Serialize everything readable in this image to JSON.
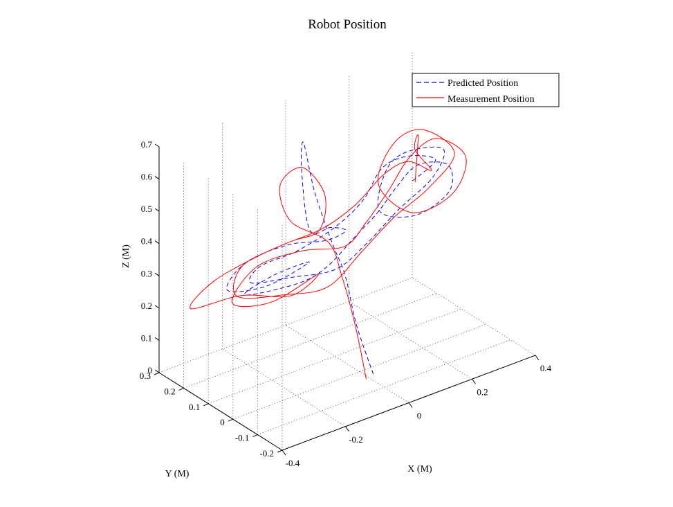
{
  "chart_data": {
    "type": "line",
    "projection": "3d",
    "title": "Robot Position",
    "xlabel": "X (M)",
    "ylabel": "Y (M)",
    "zlabel": "Z (M)",
    "xlim": [
      -0.4,
      0.4
    ],
    "ylim": [
      -0.2,
      0.3
    ],
    "zlim": [
      0,
      0.7
    ],
    "xticks": [
      "-0.4",
      "-0.2",
      "0",
      "0.2",
      "0.4"
    ],
    "yticks": [
      "-0.2",
      "-0.1",
      "0",
      "0.1",
      "0.2",
      "0.3"
    ],
    "zticks": [
      "0",
      "0.1",
      "0.2",
      "0.3",
      "0.4",
      "0.5",
      "0.6",
      "0.7"
    ],
    "grid": true,
    "legend_position": "top-right",
    "series": [
      {
        "name": "Predicted Position",
        "color": "#0000ff",
        "style": "dashed",
        "points": [
          [
            0.02,
            -0.03,
            0.0
          ],
          [
            -0.01,
            0.0,
            0.15
          ],
          [
            -0.03,
            0.02,
            0.3
          ],
          [
            -0.05,
            0.05,
            0.4
          ],
          [
            -0.08,
            0.08,
            0.55
          ],
          [
            -0.1,
            0.1,
            0.7
          ],
          [
            -0.12,
            0.08,
            0.62
          ],
          [
            -0.11,
            0.06,
            0.45
          ],
          [
            -0.06,
            0.04,
            0.45
          ],
          [
            -0.02,
            0.03,
            0.43
          ],
          [
            -0.06,
            0.06,
            0.4
          ],
          [
            -0.15,
            0.1,
            0.4
          ],
          [
            -0.26,
            0.13,
            0.37
          ],
          [
            -0.34,
            0.1,
            0.33
          ],
          [
            -0.24,
            0.07,
            0.32
          ],
          [
            -0.12,
            0.05,
            0.36
          ],
          [
            -0.2,
            0.09,
            0.33
          ],
          [
            -0.3,
            0.08,
            0.31
          ],
          [
            -0.18,
            0.02,
            0.33
          ],
          [
            -0.08,
            0.03,
            0.34
          ],
          [
            0.04,
            0.07,
            0.37
          ],
          [
            0.15,
            0.12,
            0.38
          ],
          [
            0.25,
            0.17,
            0.4
          ],
          [
            0.34,
            0.2,
            0.42
          ],
          [
            0.42,
            0.18,
            0.4
          ],
          [
            0.4,
            0.15,
            0.34
          ],
          [
            0.28,
            0.13,
            0.32
          ],
          [
            0.18,
            0.15,
            0.36
          ],
          [
            0.24,
            0.2,
            0.44
          ],
          [
            0.33,
            0.23,
            0.45
          ],
          [
            0.42,
            0.2,
            0.44
          ],
          [
            0.34,
            0.14,
            0.41
          ],
          [
            0.2,
            0.1,
            0.38
          ],
          [
            0.06,
            0.05,
            0.35
          ],
          [
            -0.06,
            0.02,
            0.33
          ],
          [
            -0.18,
            0.04,
            0.34
          ],
          [
            -0.28,
            0.08,
            0.34
          ],
          [
            -0.22,
            0.12,
            0.35
          ],
          [
            -0.12,
            0.1,
            0.37
          ],
          [
            0.0,
            0.1,
            0.4
          ],
          [
            0.12,
            0.14,
            0.42
          ],
          [
            0.22,
            0.19,
            0.46
          ],
          [
            0.32,
            0.21,
            0.45
          ],
          [
            0.38,
            0.18,
            0.43
          ],
          [
            0.3,
            0.17,
            0.4
          ]
        ]
      },
      {
        "name": "Measurement Position",
        "color": "#ff0000",
        "style": "solid",
        "points": [
          [
            -0.01,
            -0.04,
            0.0
          ],
          [
            -0.02,
            -0.01,
            0.15
          ],
          [
            -0.04,
            0.02,
            0.3
          ],
          [
            -0.06,
            0.05,
            0.4
          ],
          [
            -0.14,
            0.1,
            0.47
          ],
          [
            -0.15,
            0.13,
            0.57
          ],
          [
            -0.08,
            0.13,
            0.6
          ],
          [
            -0.04,
            0.09,
            0.52
          ],
          [
            -0.08,
            0.06,
            0.44
          ],
          [
            -0.16,
            0.07,
            0.43
          ],
          [
            -0.24,
            0.1,
            0.4
          ],
          [
            -0.36,
            0.13,
            0.35
          ],
          [
            -0.44,
            0.12,
            0.3
          ],
          [
            -0.32,
            0.07,
            0.32
          ],
          [
            -0.2,
            0.02,
            0.3
          ],
          [
            -0.1,
            0.04,
            0.32
          ],
          [
            -0.24,
            0.05,
            0.28
          ],
          [
            -0.34,
            0.08,
            0.3
          ],
          [
            -0.24,
            0.11,
            0.36
          ],
          [
            -0.12,
            0.08,
            0.38
          ],
          [
            0.0,
            0.06,
            0.36
          ],
          [
            0.1,
            0.1,
            0.38
          ],
          [
            0.2,
            0.14,
            0.42
          ],
          [
            0.3,
            0.18,
            0.47
          ],
          [
            0.4,
            0.2,
            0.48
          ],
          [
            0.46,
            0.16,
            0.42
          ],
          [
            0.38,
            0.11,
            0.36
          ],
          [
            0.26,
            0.12,
            0.34
          ],
          [
            0.2,
            0.18,
            0.42
          ],
          [
            0.28,
            0.22,
            0.5
          ],
          [
            0.38,
            0.23,
            0.5
          ],
          [
            0.44,
            0.18,
            0.43
          ],
          [
            0.32,
            0.13,
            0.39
          ],
          [
            0.18,
            0.09,
            0.37
          ],
          [
            0.04,
            0.04,
            0.34
          ],
          [
            -0.1,
            0.0,
            0.3
          ],
          [
            -0.22,
            0.02,
            0.31
          ],
          [
            -0.34,
            0.06,
            0.33
          ],
          [
            -0.28,
            0.12,
            0.37
          ],
          [
            -0.16,
            0.12,
            0.39
          ],
          [
            -0.04,
            0.1,
            0.41
          ],
          [
            0.08,
            0.12,
            0.43
          ],
          [
            0.2,
            0.16,
            0.46
          ],
          [
            0.3,
            0.19,
            0.45
          ],
          [
            0.36,
            0.17,
            0.41
          ],
          [
            0.3,
            0.16,
            0.5
          ],
          [
            0.31,
            0.16,
            0.54
          ],
          [
            0.3,
            0.16,
            0.4
          ]
        ]
      }
    ]
  }
}
